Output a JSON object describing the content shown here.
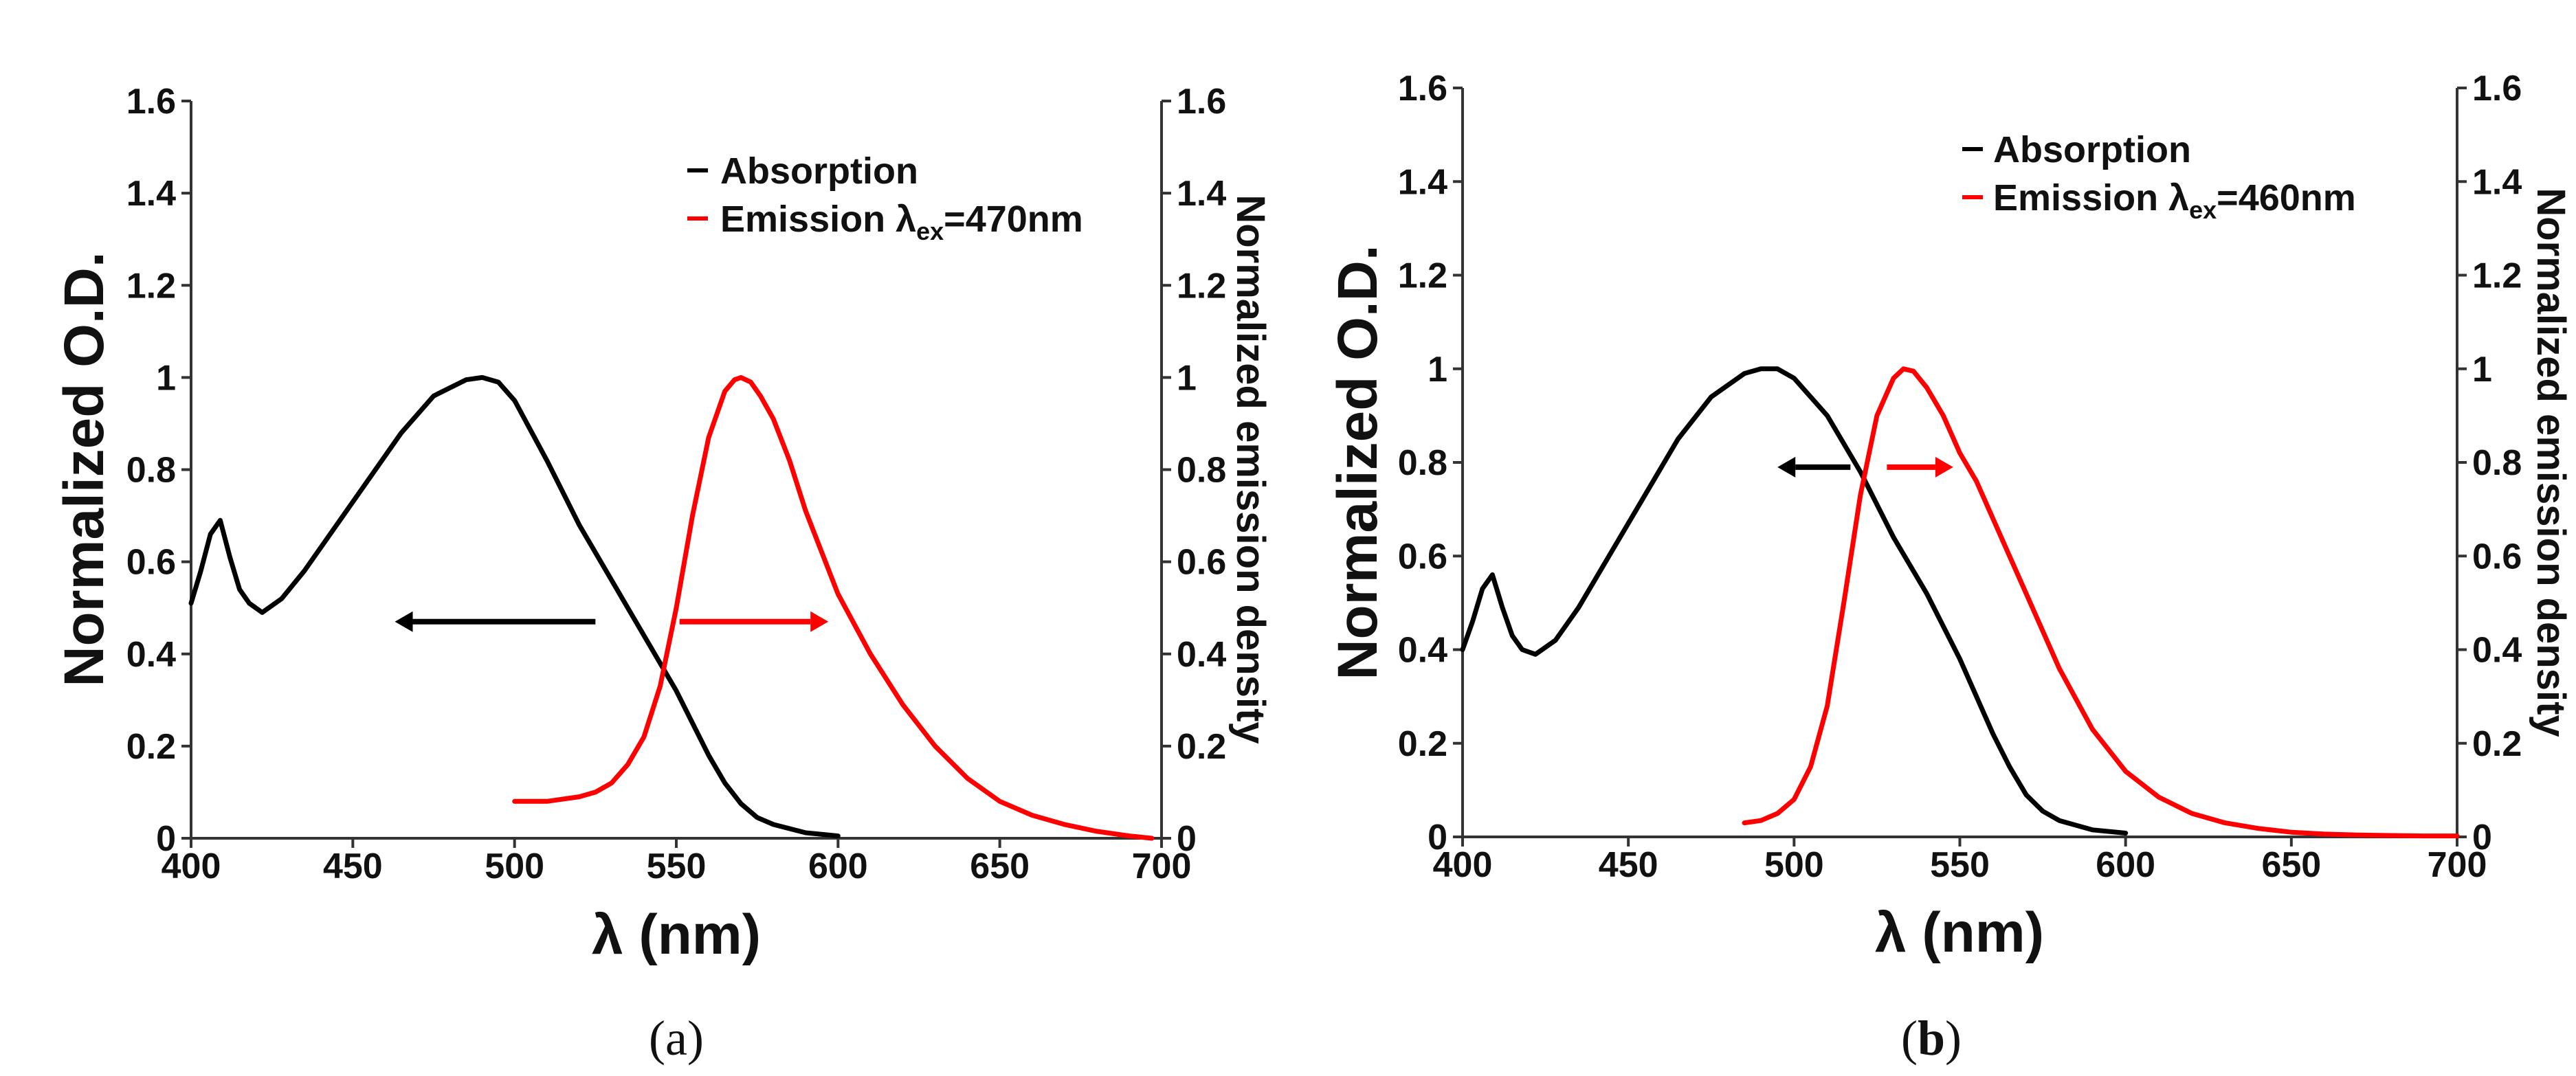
{
  "chart_data": [
    {
      "type": "line",
      "panel_label": "a",
      "xlabel": "λ (nm)",
      "ylabel": "Normalized O.D.",
      "ylabel_right": "Normalized emission density",
      "xlim": [
        400,
        700
      ],
      "ylim": [
        0,
        1.6
      ],
      "x_ticks": [
        "400",
        "450",
        "500",
        "550",
        "600",
        "650",
        "700"
      ],
      "y_ticks": [
        "0",
        "0.2",
        "0.4",
        "0.6",
        "0.8",
        "1",
        "1.2",
        "1.4",
        "1.6"
      ],
      "y_ticks_right": [
        "0",
        "0.2",
        "0.4",
        "0.6",
        "0.8",
        "1",
        "1.2",
        "1.4",
        "1.6"
      ],
      "legend": {
        "position": "top-right",
        "items": [
          {
            "name": "Absorption",
            "color": "#000000"
          },
          {
            "name": "Emission λ",
            "sub": "ex",
            "tail": "=470nm",
            "color": "#ff0000"
          }
        ]
      },
      "series": [
        {
          "name": "Absorption",
          "color": "#000000",
          "x": [
            400,
            403,
            406,
            409,
            412,
            415,
            418,
            422,
            428,
            435,
            445,
            455,
            465,
            475,
            485,
            490,
            495,
            500,
            510,
            520,
            530,
            540,
            550,
            555,
            560,
            565,
            570,
            575,
            580,
            590,
            600
          ],
          "y": [
            0.51,
            0.58,
            0.66,
            0.69,
            0.61,
            0.54,
            0.51,
            0.49,
            0.52,
            0.58,
            0.68,
            0.78,
            0.88,
            0.96,
            0.995,
            1.0,
            0.99,
            0.95,
            0.82,
            0.68,
            0.56,
            0.44,
            0.32,
            0.25,
            0.18,
            0.12,
            0.075,
            0.045,
            0.03,
            0.012,
            0.005
          ]
        },
        {
          "name": "Emission λex=470nm",
          "color": "#ff0000",
          "x": [
            500,
            510,
            520,
            525,
            530,
            535,
            540,
            545,
            550,
            555,
            560,
            565,
            568,
            570,
            573,
            576,
            580,
            585,
            590,
            600,
            610,
            620,
            630,
            640,
            650,
            660,
            670,
            680,
            690,
            697
          ],
          "y": [
            0.08,
            0.08,
            0.09,
            0.1,
            0.12,
            0.16,
            0.22,
            0.33,
            0.5,
            0.7,
            0.87,
            0.97,
            0.995,
            1.0,
            0.99,
            0.96,
            0.91,
            0.82,
            0.71,
            0.53,
            0.4,
            0.29,
            0.2,
            0.13,
            0.08,
            0.05,
            0.03,
            0.015,
            0.005,
            0.0
          ]
        }
      ],
      "annotations": [
        {
          "type": "arrow",
          "direction": "left",
          "color": "#000000",
          "x_from": 525,
          "x_to": 463,
          "y": 0.47
        },
        {
          "type": "arrow",
          "direction": "right",
          "color": "#ff0000",
          "x_from": 551,
          "x_to": 597,
          "y": 0.47
        }
      ]
    },
    {
      "type": "line",
      "panel_label": "b",
      "xlabel": "λ (nm)",
      "ylabel": "Normalized O.D.",
      "ylabel_right": "Normalized emission density",
      "xlim": [
        400,
        700
      ],
      "ylim": [
        0,
        1.6
      ],
      "x_ticks": [
        "400",
        "450",
        "500",
        "550",
        "600",
        "650",
        "700"
      ],
      "y_ticks": [
        "0",
        "0.2",
        "0.4",
        "0.6",
        "0.8",
        "1",
        "1.2",
        "1.4",
        "1.6"
      ],
      "y_ticks_right": [
        "0",
        "0.2",
        "0.4",
        "0.6",
        "0.8",
        "1",
        "1.2",
        "1.4",
        "1.6"
      ],
      "legend": {
        "position": "top-right",
        "items": [
          {
            "name": "Absorption",
            "color": "#000000"
          },
          {
            "name": "Emission λ",
            "sub": "ex",
            "tail": "=460nm",
            "color": "#ff0000"
          }
        ]
      },
      "series": [
        {
          "name": "Absorption",
          "color": "#000000",
          "x": [
            400,
            403,
            406,
            409,
            412,
            415,
            418,
            422,
            428,
            435,
            445,
            455,
            465,
            475,
            485,
            490,
            495,
            500,
            510,
            520,
            530,
            540,
            550,
            555,
            560,
            565,
            570,
            575,
            580,
            590,
            600
          ],
          "y": [
            0.4,
            0.46,
            0.53,
            0.56,
            0.49,
            0.43,
            0.4,
            0.39,
            0.42,
            0.49,
            0.61,
            0.73,
            0.85,
            0.94,
            0.99,
            1.0,
            1.0,
            0.98,
            0.9,
            0.78,
            0.64,
            0.52,
            0.38,
            0.3,
            0.22,
            0.15,
            0.09,
            0.055,
            0.035,
            0.015,
            0.008
          ]
        },
        {
          "name": "Emission λex=460nm",
          "color": "#ff0000",
          "x": [
            485,
            490,
            495,
            500,
            505,
            510,
            515,
            520,
            525,
            530,
            533,
            536,
            540,
            545,
            550,
            555,
            560,
            565,
            570,
            580,
            590,
            600,
            610,
            620,
            630,
            640,
            650,
            660,
            670,
            680,
            690,
            700
          ],
          "y": [
            0.03,
            0.035,
            0.05,
            0.08,
            0.15,
            0.28,
            0.5,
            0.73,
            0.9,
            0.98,
            1.0,
            0.995,
            0.96,
            0.9,
            0.82,
            0.76,
            0.68,
            0.6,
            0.52,
            0.36,
            0.23,
            0.14,
            0.085,
            0.05,
            0.03,
            0.018,
            0.01,
            0.006,
            0.004,
            0.003,
            0.002,
            0.002
          ]
        }
      ],
      "annotations": [
        {
          "type": "arrow",
          "direction": "left",
          "color": "#000000",
          "x_from": 517,
          "x_to": 495,
          "y": 0.79
        },
        {
          "type": "arrow",
          "direction": "right",
          "color": "#ff0000",
          "x_from": 528,
          "x_to": 548,
          "y": 0.79
        }
      ]
    }
  ]
}
